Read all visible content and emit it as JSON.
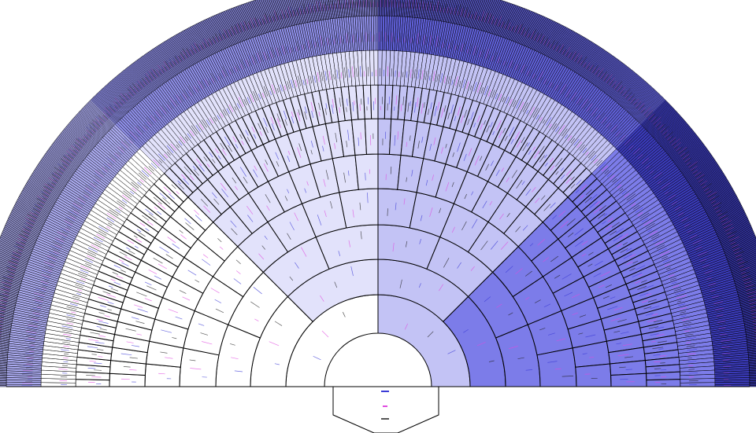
{
  "chart": {
    "type": "pedigree-fan",
    "generations": 10,
    "root_person": {
      "name": "",
      "label_color": "#3b3bd6"
    },
    "line_color": "#000000",
    "quadrant_colors": {
      "paternal_paternal": "#ffffff",
      "paternal_maternal": "#e2e2fb",
      "maternal_paternal": "#c3c3f5",
      "maternal_maternal": "#7c7ce9"
    },
    "outer_ring_tints": [
      "#a9a9ee",
      "#8d8de6",
      "#5f5fd6",
      "#3a3ab8"
    ],
    "name_ink_colors": [
      "#3b3bd6",
      "#e04be0",
      "#222222"
    ]
  }
}
